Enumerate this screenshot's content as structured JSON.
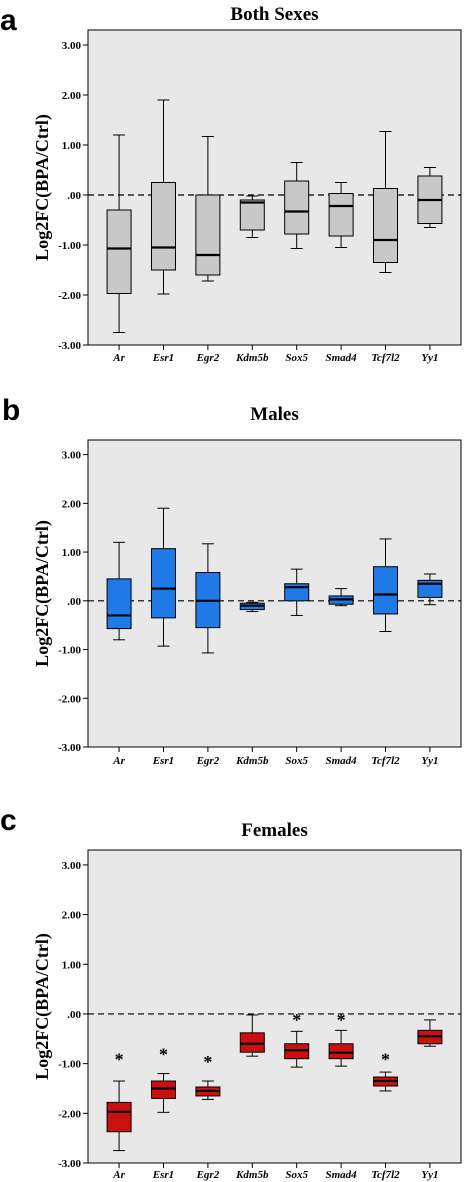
{
  "chart_data": [
    {
      "type": "box",
      "panel_letter": "a",
      "title": "Both Sexes",
      "ylabel": "Log2FC(BPA/Ctrl)",
      "ylim": [
        -3,
        3.3
      ],
      "yticks": [
        -3,
        -2,
        -1,
        0,
        1,
        2,
        3
      ],
      "ytick_labels": [
        "-3.00",
        "-2.00",
        "-1.00",
        ".00",
        "1.00",
        "2.00",
        "3.00"
      ],
      "reference_line": 0,
      "box_color": "#c8c8c8",
      "background": "#e8e8e8",
      "categories": [
        "Ar",
        "Esr1",
        "Egr2",
        "Kdm5b",
        "Sox5",
        "Smad4",
        "Tcf7l2",
        "Yy1"
      ],
      "boxes": [
        {
          "min": -2.75,
          "q1": -1.97,
          "median": -1.07,
          "q3": -0.3,
          "max": 1.2
        },
        {
          "min": -1.98,
          "q1": -1.5,
          "median": -1.05,
          "q3": 0.25,
          "max": 1.9
        },
        {
          "min": -1.72,
          "q1": -1.6,
          "median": -1.2,
          "q3": 0.0,
          "max": 1.17
        },
        {
          "min": -0.85,
          "q1": -0.7,
          "median": -0.15,
          "q3": -0.1,
          "max": -0.02
        },
        {
          "min": -1.07,
          "q1": -0.78,
          "median": -0.33,
          "q3": 0.28,
          "max": 0.65
        },
        {
          "min": -1.05,
          "q1": -0.82,
          "median": -0.22,
          "q3": 0.03,
          "max": 0.25
        },
        {
          "min": -1.55,
          "q1": -1.35,
          "median": -0.9,
          "q3": 0.13,
          "max": 1.27
        },
        {
          "min": -0.65,
          "q1": -0.57,
          "median": -0.1,
          "q3": 0.38,
          "max": 0.55
        }
      ],
      "asterisks": []
    },
    {
      "type": "box",
      "panel_letter": "b",
      "title": "Males",
      "ylabel": "Log2FC(BPA/Ctrl)",
      "ylim": [
        -3,
        3.3
      ],
      "yticks": [
        -3,
        -2,
        -1,
        0,
        1,
        2,
        3
      ],
      "ytick_labels": [
        "-3.00",
        "-2.00",
        "-1.00",
        ".00",
        "1.00",
        "2.00",
        "3.00"
      ],
      "reference_line": 0,
      "box_color": "#1f7ae8",
      "background": "#e8e8e8",
      "categories": [
        "Ar",
        "Esr1",
        "Egr2",
        "Kdm5b",
        "Sox5",
        "Smad4",
        "Tcf7l2",
        "Yy1"
      ],
      "boxes": [
        {
          "min": -0.8,
          "q1": -0.57,
          "median": -0.3,
          "q3": 0.45,
          "max": 1.2
        },
        {
          "min": -0.93,
          "q1": -0.35,
          "median": 0.25,
          "q3": 1.07,
          "max": 1.9
        },
        {
          "min": -1.07,
          "q1": -0.55,
          "median": 0.0,
          "q3": 0.58,
          "max": 1.17
        },
        {
          "min": -0.22,
          "q1": -0.18,
          "median": -0.1,
          "q3": -0.05,
          "max": -0.03
        },
        {
          "min": -0.3,
          "q1": 0.0,
          "median": 0.28,
          "q3": 0.35,
          "max": 0.65
        },
        {
          "min": -0.1,
          "q1": -0.07,
          "median": 0.03,
          "q3": 0.1,
          "max": 0.25
        },
        {
          "min": -0.63,
          "q1": -0.27,
          "median": 0.13,
          "q3": 0.7,
          "max": 1.27
        },
        {
          "min": -0.08,
          "q1": 0.07,
          "median": 0.35,
          "q3": 0.42,
          "max": 0.55
        }
      ],
      "asterisks": []
    },
    {
      "type": "box",
      "panel_letter": "c",
      "title": "Females",
      "ylabel": "Log2FC(BPA/Ctrl)",
      "ylim": [
        -3,
        3.3
      ],
      "yticks": [
        -3,
        -2,
        -1,
        0,
        1,
        2,
        3
      ],
      "ytick_labels": [
        "-3.00",
        "-2.00",
        "-1.00",
        ".00",
        "1.00",
        "2.00",
        "3.00"
      ],
      "reference_line": 0,
      "box_color": "#cc1010",
      "background": "#e8e8e8",
      "categories": [
        "Ar",
        "Esr1",
        "Egr2",
        "Kdm5b",
        "Sox5",
        "Smad4",
        "Tcf7l2",
        "Yy1"
      ],
      "boxes": [
        {
          "min": -2.75,
          "q1": -2.37,
          "median": -1.97,
          "q3": -1.78,
          "max": -1.35
        },
        {
          "min": -1.98,
          "q1": -1.7,
          "median": -1.5,
          "q3": -1.35,
          "max": -1.2
        },
        {
          "min": -1.72,
          "q1": -1.65,
          "median": -1.55,
          "q3": -1.47,
          "max": -1.35
        },
        {
          "min": -0.85,
          "q1": -0.77,
          "median": -0.6,
          "q3": -0.38,
          "max": -0.02
        },
        {
          "min": -1.07,
          "q1": -0.9,
          "median": -0.73,
          "q3": -0.6,
          "max": -0.35
        },
        {
          "min": -1.05,
          "q1": -0.9,
          "median": -0.78,
          "q3": -0.6,
          "max": -0.33
        },
        {
          "min": -1.55,
          "q1": -1.45,
          "median": -1.35,
          "q3": -1.27,
          "max": -1.17
        },
        {
          "min": -0.65,
          "q1": -0.6,
          "median": -0.45,
          "q3": -0.33,
          "max": -0.12
        }
      ],
      "asterisks": [
        {
          "category": "Ar",
          "value": -0.8
        },
        {
          "category": "Esr1",
          "value": -0.7
        },
        {
          "category": "Egr2",
          "value": -0.85
        },
        {
          "category": "Sox5",
          "value": 0.0
        },
        {
          "category": "Smad4",
          "value": 0.0
        },
        {
          "category": "Tcf7l2",
          "value": -0.8
        }
      ],
      "asterisk_label": "*"
    }
  ]
}
